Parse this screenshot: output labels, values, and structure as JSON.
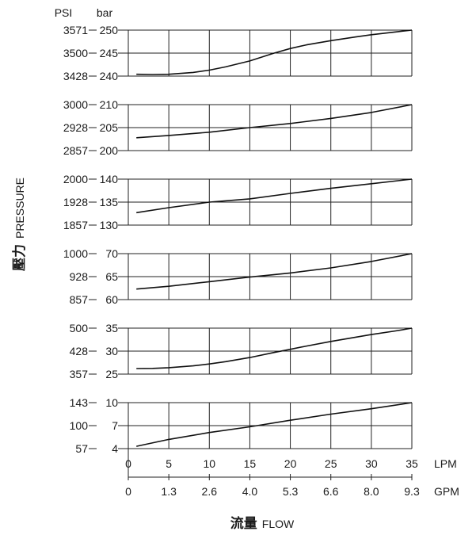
{
  "unit_headers": {
    "psi": "PSI",
    "bar": "bar"
  },
  "ylabel": {
    "cjk": "壓力",
    "en": "PRESSURE"
  },
  "xlabel": {
    "cjk": "流量",
    "en": "FLOW"
  },
  "x_axes": {
    "lpm": {
      "unit": "LPM",
      "ticks": [
        "0",
        "5",
        "10",
        "15",
        "20",
        "25",
        "30",
        "35"
      ]
    },
    "gpm": {
      "unit": "GPM",
      "ticks": [
        "0",
        "1.3",
        "2.6",
        "4.0",
        "5.3",
        "6.6",
        "8.0",
        "9.3"
      ]
    }
  },
  "chart_data": {
    "type": "line",
    "xlim": [
      0,
      35
    ],
    "grid": true,
    "panels": [
      {
        "psi_ticks": [
          "3571",
          "3500",
          "3428"
        ],
        "bar_ticks": [
          "250",
          "245",
          "240"
        ],
        "ylim": [
          240,
          250
        ],
        "x": [
          1,
          3,
          5,
          8,
          10,
          12,
          15,
          18,
          20,
          22,
          25,
          28,
          30,
          33,
          35
        ],
        "y": [
          240.4,
          240.35,
          240.4,
          240.8,
          241.3,
          242.0,
          243.3,
          245.0,
          246.0,
          246.8,
          247.7,
          248.5,
          249.0,
          249.6,
          250.0
        ]
      },
      {
        "psi_ticks": [
          "3000",
          "2928",
          "2857"
        ],
        "bar_ticks": [
          "210",
          "205",
          "200"
        ],
        "ylim": [
          200,
          210
        ],
        "x": [
          1,
          5,
          10,
          15,
          20,
          25,
          30,
          35
        ],
        "y": [
          202.8,
          203.3,
          204.0,
          205.0,
          205.9,
          207.0,
          208.3,
          210.0
        ]
      },
      {
        "psi_ticks": [
          "2000",
          "1928",
          "1857"
        ],
        "bar_ticks": [
          "140",
          "135",
          "130"
        ],
        "ylim": [
          130,
          140
        ],
        "x": [
          1,
          5,
          10,
          15,
          20,
          25,
          30,
          35
        ],
        "y": [
          132.7,
          133.8,
          135.0,
          135.7,
          136.9,
          138.0,
          139.0,
          140.0
        ]
      },
      {
        "psi_ticks": [
          "1000",
          "928",
          "857"
        ],
        "bar_ticks": [
          "70",
          "65",
          "60"
        ],
        "ylim": [
          60,
          70
        ],
        "x": [
          1,
          5,
          10,
          15,
          20,
          25,
          30,
          35
        ],
        "y": [
          62.3,
          62.9,
          63.9,
          64.9,
          65.8,
          66.9,
          68.3,
          70.0
        ]
      },
      {
        "psi_ticks": [
          "500",
          "428",
          "357"
        ],
        "bar_ticks": [
          "35",
          "30",
          "25"
        ],
        "ylim": [
          25,
          35
        ],
        "x": [
          1,
          3,
          5,
          8,
          10,
          12,
          15,
          18,
          20,
          22,
          25,
          28,
          30,
          33,
          35
        ],
        "y": [
          26.2,
          26.25,
          26.4,
          26.8,
          27.2,
          27.7,
          28.6,
          29.7,
          30.4,
          31.1,
          32.1,
          33.0,
          33.6,
          34.4,
          35.0
        ]
      },
      {
        "psi_ticks": [
          "143",
          "100",
          "57"
        ],
        "bar_ticks": [
          "10",
          "7",
          "4"
        ],
        "ylim": [
          4,
          10
        ],
        "x": [
          1,
          5,
          10,
          15,
          20,
          25,
          30,
          35
        ],
        "y": [
          4.3,
          5.2,
          6.1,
          6.85,
          7.7,
          8.5,
          9.2,
          10.0
        ]
      }
    ]
  }
}
